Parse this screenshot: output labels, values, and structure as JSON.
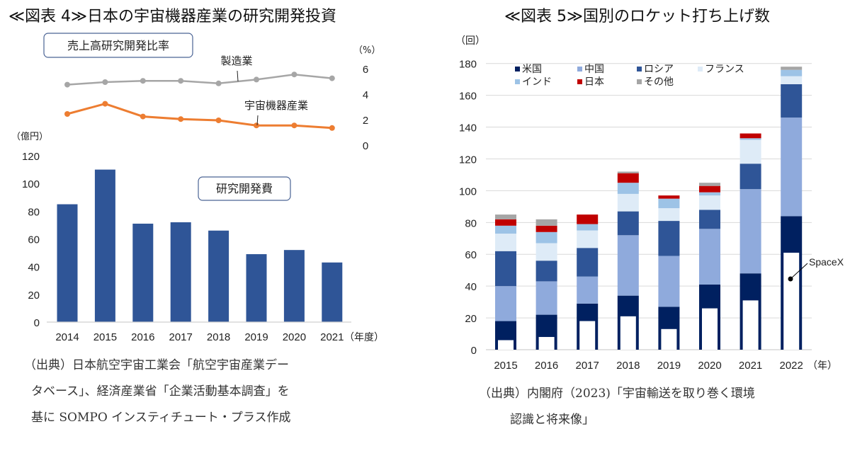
{
  "left_title": "≪図表 4≫日本の宇宙機器産業の研究開発投資",
  "right_title": "≪図表 5≫国別のロケット打ち上げ数",
  "left_source": [
    "（出典）日本航空宇宙工業会「航空宇宙産業デー",
    "タベース」、経済産業省「企業活動基本調査」を",
    "基に SOMPO インスティチュート・プラス作成"
  ],
  "right_source": [
    "（出典）内閣府（2023)「宇宙輸送を取り巻く環境",
    "認識と将来像」"
  ],
  "colors": {
    "bar_blue": "#2F5597",
    "manufacturing": "#A6A6A6",
    "space": "#ED7D31",
    "us": "#002060",
    "china": "#8FAADC",
    "russia": "#2F5597",
    "france": "#DEEBF7",
    "india": "#9DC3E6",
    "japan": "#C00000",
    "other": "#A5A5A5",
    "spacex": "#FFFFFF"
  },
  "chart_data": [
    {
      "type": "line",
      "title": "売上高研究開発比率",
      "ylabel": "（%）",
      "ylim": [
        0,
        6
      ],
      "yticks": [
        "0",
        "2",
        "4",
        "6"
      ],
      "x": [
        "2014",
        "2015",
        "2016",
        "2017",
        "2018",
        "2019",
        "2020",
        "2021"
      ],
      "series": [
        {
          "name": "製造業",
          "values": [
            4.8,
            5.0,
            5.1,
            5.1,
            4.9,
            5.2,
            5.6,
            5.3
          ]
        },
        {
          "name": "宇宙機器産業",
          "values": [
            2.5,
            3.3,
            2.3,
            2.1,
            2.0,
            1.6,
            1.6,
            1.4
          ]
        }
      ]
    },
    {
      "type": "bar",
      "title": "研究開発費",
      "ylabel": "（億円）",
      "xlabel": "（年度）",
      "ylim": [
        0,
        120
      ],
      "yticks": [
        "0",
        "20",
        "40",
        "60",
        "80",
        "100",
        "120"
      ],
      "categories": [
        "2014",
        "2015",
        "2016",
        "2017",
        "2018",
        "2019",
        "2020",
        "2021"
      ],
      "values": [
        85,
        110,
        71,
        72,
        66,
        49,
        52,
        43
      ]
    },
    {
      "type": "bar",
      "stacked": true,
      "title": "国別のロケット打ち上げ数",
      "ylabel": "（回）",
      "xlabel": "（年）",
      "ylim": [
        0,
        180
      ],
      "yticks": [
        "0",
        "20",
        "40",
        "60",
        "80",
        "100",
        "120",
        "140",
        "160",
        "180"
      ],
      "grid": true,
      "legend": "top-left",
      "categories": [
        "2015",
        "2016",
        "2017",
        "2018",
        "2019",
        "2020",
        "2021",
        "2022"
      ],
      "series": [
        {
          "name": "米国",
          "key": "us",
          "values": [
            18,
            22,
            29,
            34,
            27,
            41,
            48,
            84
          ]
        },
        {
          "name": "中国",
          "key": "china",
          "values": [
            22,
            21,
            17,
            38,
            32,
            35,
            53,
            62
          ]
        },
        {
          "name": "ロシア",
          "key": "russia",
          "values": [
            22,
            13,
            18,
            15,
            22,
            12,
            16,
            21
          ]
        },
        {
          "name": "フランス",
          "key": "france",
          "values": [
            11,
            11,
            11,
            11,
            8,
            9,
            15,
            5
          ]
        },
        {
          "name": "インド",
          "key": "india",
          "values": [
            5,
            7,
            4,
            7,
            6,
            2,
            1,
            4
          ]
        },
        {
          "name": "日本",
          "key": "japan",
          "values": [
            4,
            4,
            6,
            6,
            2,
            4,
            3,
            0
          ]
        },
        {
          "name": "その他",
          "key": "other",
          "values": [
            3,
            4,
            0,
            1,
            0,
            2,
            0,
            2
          ]
        }
      ],
      "annotation": {
        "label": "SpaceX",
        "values": [
          6,
          8,
          18,
          21,
          13,
          26,
          31,
          61
        ]
      }
    }
  ]
}
